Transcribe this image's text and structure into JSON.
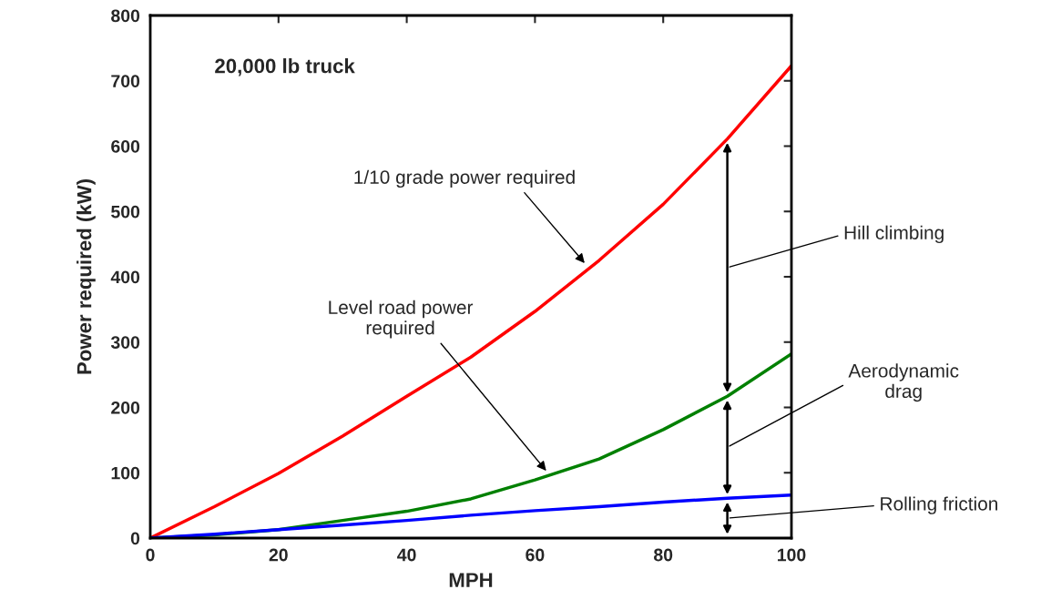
{
  "chart_data": {
    "type": "line",
    "title": "20,000 lb truck",
    "xlabel": "MPH",
    "ylabel": "Power required (kW)",
    "x": [
      0,
      10,
      20,
      30,
      40,
      50,
      60,
      70,
      80,
      90,
      100
    ],
    "series": [
      {
        "color": "#ff0000",
        "values": [
          0,
          48,
          99,
          156,
          217,
          277,
          347,
          425,
          511,
          611,
          723
        ]
      },
      {
        "color": "#008000",
        "values": [
          0,
          5,
          13,
          27,
          41,
          60,
          89,
          121,
          166,
          217,
          282
        ]
      },
      {
        "color": "#0000ff",
        "values": [
          0,
          6,
          13,
          20,
          27,
          35,
          42,
          48,
          55,
          61,
          66
        ]
      }
    ],
    "xlim": [
      0,
      100
    ],
    "xticks": [
      0,
      20,
      40,
      60,
      80,
      100
    ],
    "ylim": [
      0,
      800
    ],
    "yticks": [
      0,
      100,
      200,
      300,
      400,
      500,
      600,
      700,
      800
    ],
    "grid": false,
    "legend": false,
    "marker": "none",
    "line_style": "solid",
    "annotations": [
      {
        "text": "1/10 grade power required",
        "x": 68,
        "y": 418
      },
      {
        "text": "Level road power\nrequired",
        "x": 62,
        "y": 100
      },
      "Hill climbing",
      "Aerodynamic\ndrag",
      "Rolling friction"
    ]
  }
}
